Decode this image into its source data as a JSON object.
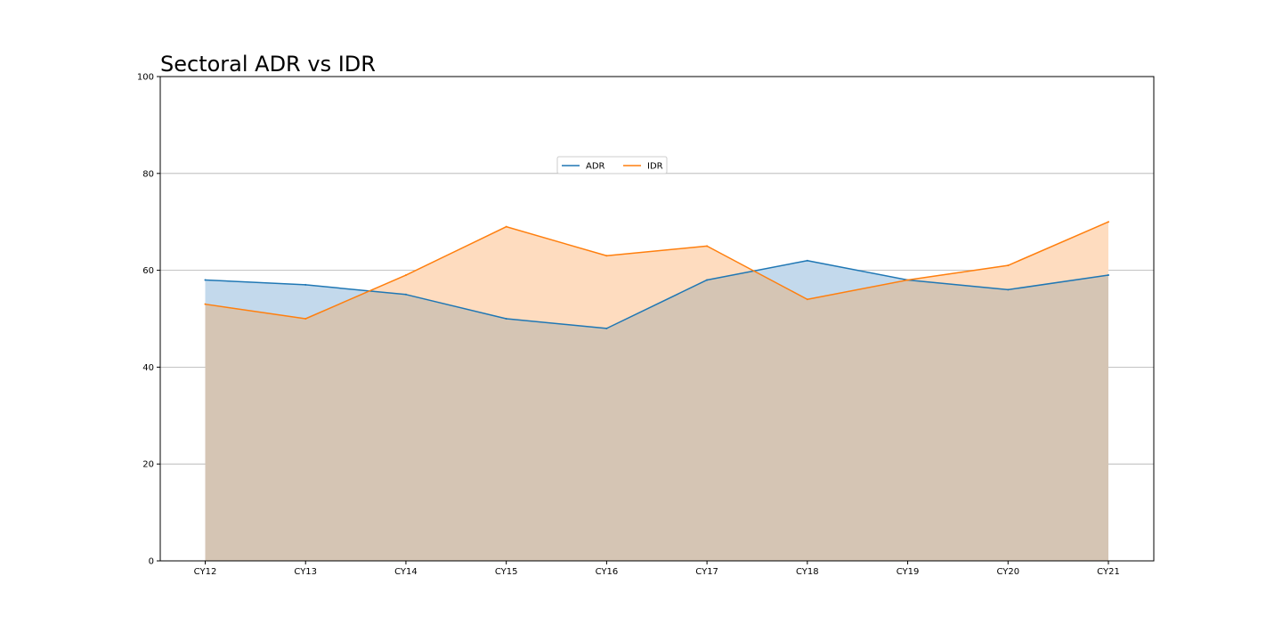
{
  "chart_data": {
    "type": "area",
    "title": "Sectoral ADR vs IDR",
    "xlabel": "",
    "ylabel": "",
    "categories": [
      "CY12",
      "CY13",
      "CY14",
      "CY15",
      "CY16",
      "CY17",
      "CY18",
      "CY19",
      "CY20",
      "CY21"
    ],
    "series": [
      {
        "name": "ADR",
        "color": "#1f77b4",
        "fill": "#c3d9ec",
        "values": [
          58,
          57,
          55,
          50,
          48,
          58,
          62,
          58,
          56,
          59
        ]
      },
      {
        "name": "IDR",
        "color": "#ff7f0e",
        "fill": "#fedcbf",
        "values": [
          53,
          50,
          59,
          69,
          63,
          65,
          54,
          58,
          61,
          70
        ]
      }
    ],
    "overlap_fill": "#d5c5b4",
    "ylim": [
      0,
      100
    ],
    "yticks": [
      0,
      20,
      40,
      60,
      80,
      100
    ],
    "grid": "horizontal",
    "legend": "upper-center"
  }
}
